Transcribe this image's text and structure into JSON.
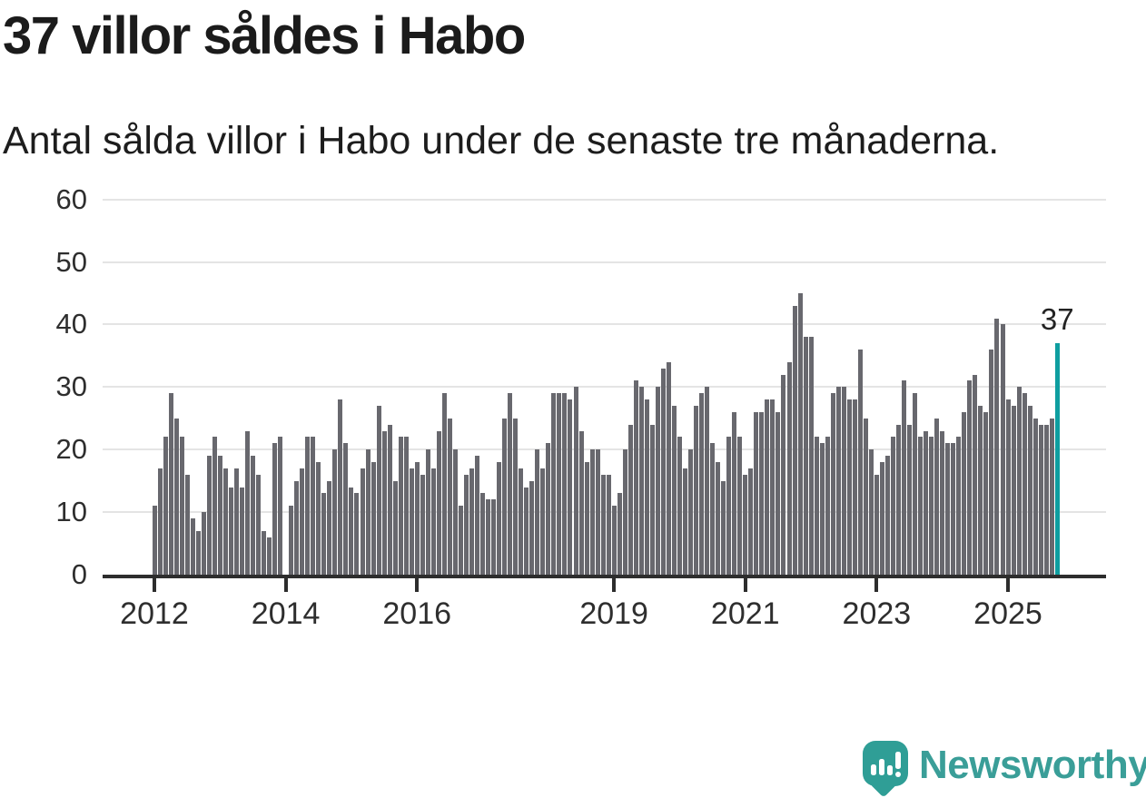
{
  "page": {
    "title": "37 villor såldes i Habo",
    "subtitle": "Antal sålda villor i Habo under de senaste tre månaderna."
  },
  "colors": {
    "bar": "#68686e",
    "highlight_bar": "#0e9ea0",
    "gridline": "#e4e4e4",
    "axis": "#2d2d2d",
    "text": "#1b1b1b",
    "brand_teal": "#2f9e96",
    "brand_text": "#3a9e98"
  },
  "chart_data": {
    "type": "bar",
    "title": "37 villor såldes i Habo",
    "subtitle": "Antal sålda villor i Habo under de senaste tre månaderna.",
    "xlabel": "",
    "ylabel": "",
    "x_monthly_from": "2012-01",
    "x_monthly_to": "2025-10",
    "values": [
      11,
      17,
      22,
      29,
      25,
      22,
      16,
      9,
      7,
      10,
      19,
      22,
      19,
      17,
      14,
      17,
      14,
      23,
      19,
      16,
      7,
      6,
      21,
      22,
      0,
      11,
      15,
      17,
      22,
      22,
      18,
      13,
      15,
      20,
      28,
      21,
      14,
      13,
      17,
      20,
      18,
      27,
      23,
      24,
      15,
      22,
      22,
      17,
      18,
      16,
      20,
      17,
      23,
      29,
      25,
      20,
      11,
      16,
      17,
      19,
      13,
      12,
      12,
      18,
      25,
      29,
      25,
      17,
      14,
      15,
      20,
      17,
      21,
      29,
      29,
      29,
      28,
      30,
      23,
      18,
      20,
      20,
      16,
      16,
      11,
      13,
      20,
      24,
      31,
      30,
      28,
      24,
      30,
      33,
      34,
      27,
      22,
      17,
      20,
      27,
      29,
      30,
      21,
      18,
      15,
      22,
      26,
      22,
      16,
      17,
      26,
      26,
      28,
      28,
      26,
      32,
      34,
      43,
      45,
      38,
      38,
      22,
      21,
      22,
      29,
      30,
      30,
      28,
      28,
      36,
      25,
      20,
      16,
      18,
      19,
      22,
      24,
      31,
      24,
      29,
      22,
      23,
      22,
      25,
      23,
      21,
      21,
      22,
      26,
      31,
      32,
      27,
      26,
      36,
      41,
      40,
      28,
      27,
      30,
      29,
      27,
      25,
      24,
      24,
      25,
      37
    ],
    "highlight_index": 165,
    "highlight_label": "37",
    "y_ticks": [
      0,
      10,
      20,
      30,
      40,
      50,
      60
    ],
    "ylim": [
      0,
      60
    ],
    "grid": true,
    "legend": "none",
    "x_ticks": [
      {
        "label": "2012",
        "month_index": 0
      },
      {
        "label": "2014",
        "month_index": 24
      },
      {
        "label": "2016",
        "month_index": 48
      },
      {
        "label": "2019",
        "month_index": 84
      },
      {
        "label": "2021",
        "month_index": 108
      },
      {
        "label": "2023",
        "month_index": 132
      },
      {
        "label": "2025",
        "month_index": 156
      }
    ]
  },
  "footer": {
    "brand": "Newsworthy"
  }
}
